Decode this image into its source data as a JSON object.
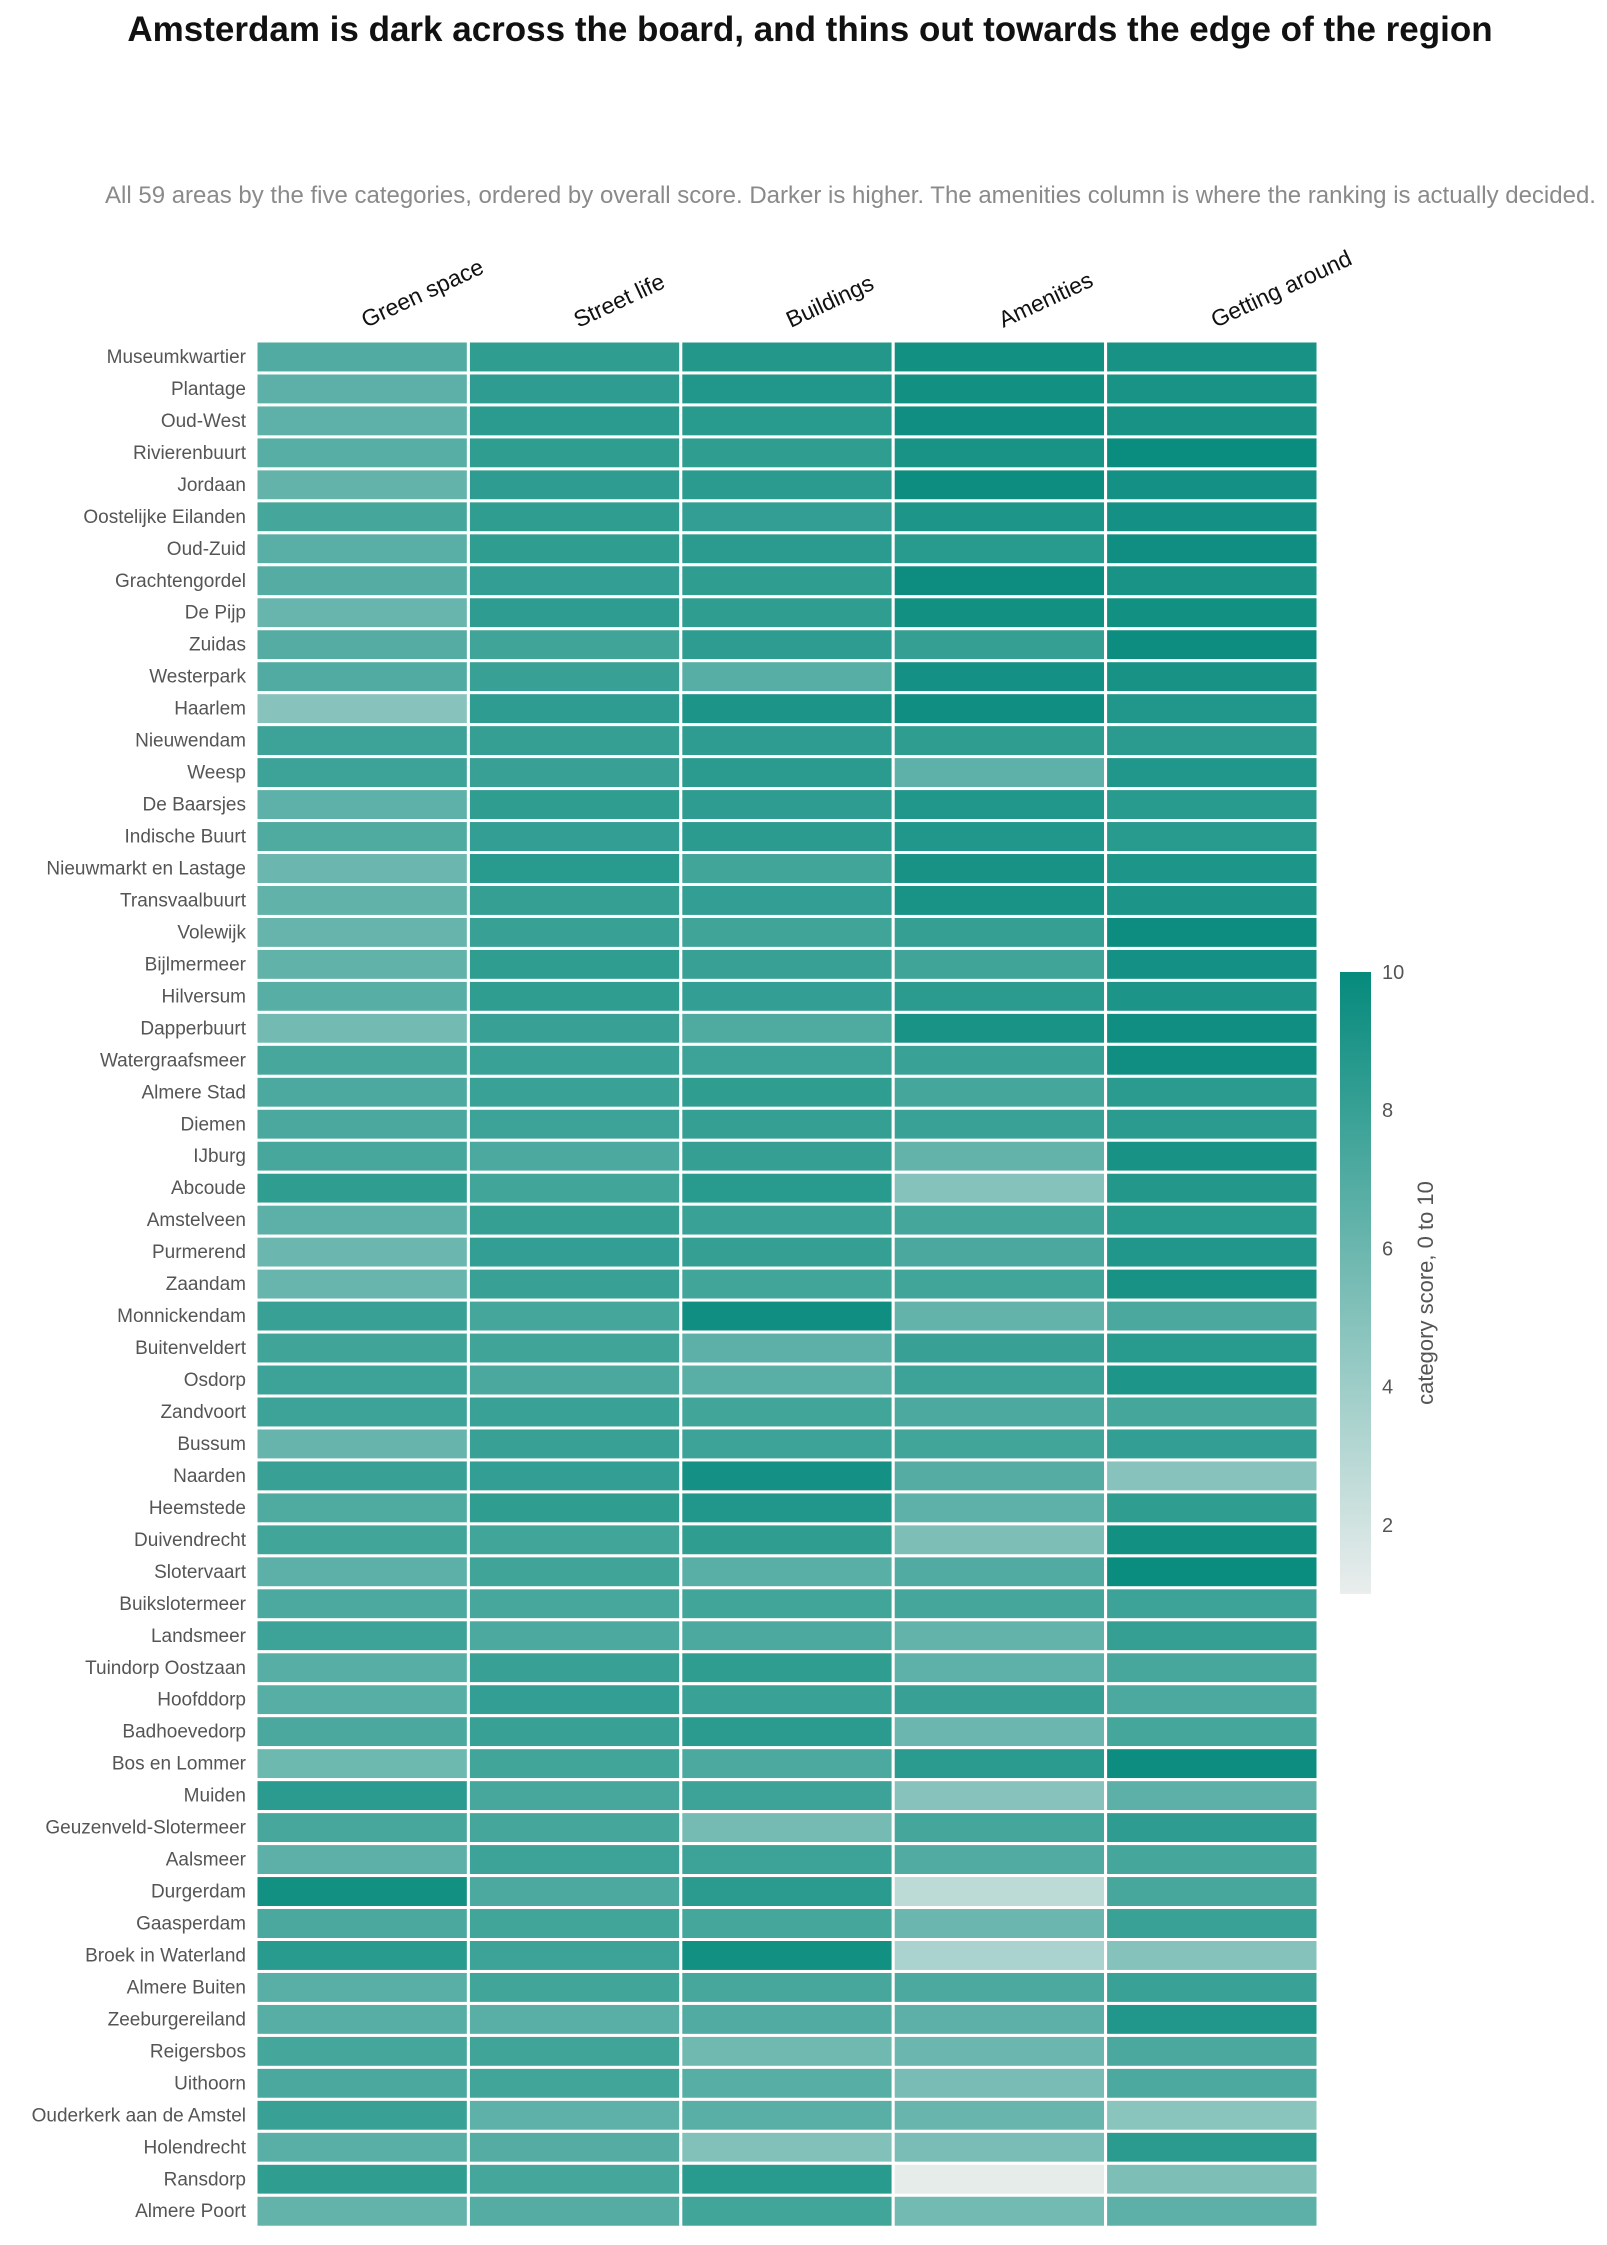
{
  "chart_data": {
    "type": "heatmap",
    "title": "Amsterdam is dark across the board, and thins out towards the edge of the region",
    "subtitle": "All 59 areas by the five categories, ordered by overall score. Darker is higher. The amenities column is where the ranking is actually decided.",
    "columns": [
      "Green space",
      "Street life",
      "Buildings",
      "Amenities",
      "Getting around"
    ],
    "rows": [
      "Museumkwartier",
      "Plantage",
      "Oud-West",
      "Rivierenbuurt",
      "Jordaan",
      "Oostelijke Eilanden",
      "Oud-Zuid",
      "Grachtengordel",
      "De Pijp",
      "Zuidas",
      "Westerpark",
      "Haarlem",
      "Nieuwendam",
      "Weesp",
      "De Baarsjes",
      "Indische Buurt",
      "Nieuwmarkt en Lastage",
      "Transvaalbuurt",
      "Volewijk",
      "Bijlmermeer",
      "Hilversum",
      "Dapperbuurt",
      "Watergraafsmeer",
      "Almere Stad",
      "Diemen",
      "IJburg",
      "Abcoude",
      "Amstelveen",
      "Purmerend",
      "Zaandam",
      "Monnickendam",
      "Buitenveldert",
      "Osdorp",
      "Zandvoort",
      "Bussum",
      "Naarden",
      "Heemstede",
      "Duivendrecht",
      "Slotervaart",
      "Buikslotermeer",
      "Landsmeer",
      "Tuindorp Oostzaan",
      "Hoofddorp",
      "Badhoevedorp",
      "Bos en Lommer",
      "Muiden",
      "Geuzenveld-Slotermeer",
      "Aalsmeer",
      "Durgerdam",
      "Gaasperdam",
      "Broek in Waterland",
      "Almere Buiten",
      "Zeeburgereiland",
      "Reigersbos",
      "Uithoorn",
      "Ouderkerk aan de Amstel",
      "Holendrecht",
      "Ransdorp",
      "Almere Poort"
    ],
    "values": [
      [
        7.0,
        8.3,
        8.8,
        9.5,
        9.3
      ],
      [
        6.6,
        8.4,
        8.9,
        9.5,
        9.2
      ],
      [
        6.5,
        8.5,
        8.6,
        9.6,
        9.3
      ],
      [
        6.8,
        8.3,
        8.3,
        9.2,
        9.8
      ],
      [
        6.3,
        8.4,
        8.5,
        9.7,
        9.4
      ],
      [
        7.5,
        8.3,
        8.2,
        9.0,
        9.4
      ],
      [
        6.7,
        8.3,
        8.5,
        8.6,
        9.6
      ],
      [
        6.9,
        8.2,
        8.3,
        9.7,
        9.2
      ],
      [
        6.1,
        8.4,
        8.3,
        9.5,
        9.5
      ],
      [
        6.9,
        7.7,
        8.4,
        8.1,
        9.7
      ],
      [
        7.0,
        8.0,
        6.8,
        9.4,
        9.3
      ],
      [
        4.9,
        8.4,
        9.1,
        9.6,
        8.9
      ],
      [
        7.8,
        8.1,
        8.4,
        8.3,
        8.5
      ],
      [
        7.8,
        8.0,
        8.5,
        6.5,
        8.9
      ],
      [
        6.5,
        8.3,
        8.4,
        8.9,
        8.6
      ],
      [
        7.1,
        8.2,
        8.5,
        8.9,
        8.6
      ],
      [
        6.0,
        8.6,
        7.6,
        9.3,
        9.0
      ],
      [
        6.4,
        8.1,
        8.2,
        9.2,
        9.1
      ],
      [
        6.2,
        8.0,
        7.7,
        8.1,
        9.7
      ],
      [
        6.4,
        8.3,
        8.0,
        7.7,
        9.4
      ],
      [
        6.8,
        8.3,
        8.2,
        8.5,
        9.1
      ],
      [
        5.7,
        8.0,
        7.1,
        9.2,
        9.6
      ],
      [
        7.4,
        7.9,
        7.8,
        7.9,
        9.6
      ],
      [
        7.2,
        7.9,
        8.3,
        7.5,
        8.5
      ],
      [
        7.3,
        7.8,
        8.1,
        7.9,
        8.5
      ],
      [
        7.4,
        7.2,
        8.1,
        6.3,
        9.3
      ],
      [
        8.3,
        7.6,
        8.6,
        5.0,
        8.8
      ],
      [
        6.6,
        8.1,
        7.9,
        7.5,
        8.6
      ],
      [
        6.0,
        8.2,
        8.1,
        7.3,
        8.9
      ],
      [
        6.1,
        8.0,
        7.6,
        7.6,
        9.3
      ],
      [
        8.0,
        7.5,
        9.6,
        6.3,
        7.3
      ],
      [
        7.7,
        7.7,
        6.6,
        8.0,
        8.6
      ],
      [
        7.8,
        7.3,
        6.7,
        7.8,
        9.0
      ],
      [
        7.8,
        7.9,
        7.6,
        7.2,
        7.5
      ],
      [
        6.2,
        8.0,
        7.8,
        7.6,
        8.2
      ],
      [
        8.0,
        8.2,
        9.4,
        6.9,
        4.9
      ],
      [
        7.1,
        8.3,
        8.9,
        6.5,
        8.3
      ],
      [
        7.6,
        7.6,
        8.3,
        5.3,
        9.5
      ],
      [
        6.6,
        7.7,
        6.7,
        7.0,
        9.8
      ],
      [
        7.2,
        7.4,
        7.6,
        7.5,
        7.8
      ],
      [
        7.8,
        7.2,
        7.2,
        6.3,
        8.1
      ],
      [
        6.8,
        8.0,
        8.3,
        6.5,
        7.4
      ],
      [
        6.8,
        8.2,
        7.9,
        8.0,
        7.2
      ],
      [
        7.3,
        8.0,
        8.5,
        6.0,
        7.5
      ],
      [
        5.9,
        7.6,
        7.2,
        8.5,
        9.7
      ],
      [
        8.5,
        7.4,
        7.8,
        4.9,
        6.6
      ],
      [
        7.4,
        7.5,
        5.6,
        7.5,
        8.4
      ],
      [
        6.6,
        7.8,
        7.8,
        7.0,
        7.5
      ],
      [
        9.5,
        7.2,
        8.5,
        2.8,
        7.4
      ],
      [
        7.3,
        7.6,
        7.5,
        6.0,
        7.9
      ],
      [
        8.6,
        7.8,
        9.5,
        3.5,
        5.0
      ],
      [
        6.7,
        7.6,
        7.4,
        7.2,
        7.9
      ],
      [
        6.8,
        6.7,
        7.0,
        6.6,
        8.9
      ],
      [
        7.5,
        7.7,
        5.8,
        6.0,
        7.3
      ],
      [
        7.3,
        7.6,
        6.8,
        5.5,
        7.2
      ],
      [
        8.0,
        6.5,
        6.7,
        6.1,
        4.8
      ],
      [
        6.7,
        6.9,
        5.1,
        5.4,
        8.5
      ],
      [
        8.3,
        7.5,
        8.6,
        1.2,
        5.3
      ],
      [
        6.3,
        6.9,
        7.6,
        5.7,
        6.6
      ]
    ],
    "colorbar": {
      "label": "category score, 0 to 10",
      "ticks": [
        2,
        4,
        6,
        8,
        10
      ],
      "range": [
        1,
        10
      ]
    },
    "colors": {
      "high": "#058a7c",
      "low": "#eaeeed",
      "cell_border": "#ffffff",
      "axis_text": "#555555",
      "column_text": "#111111"
    }
  }
}
